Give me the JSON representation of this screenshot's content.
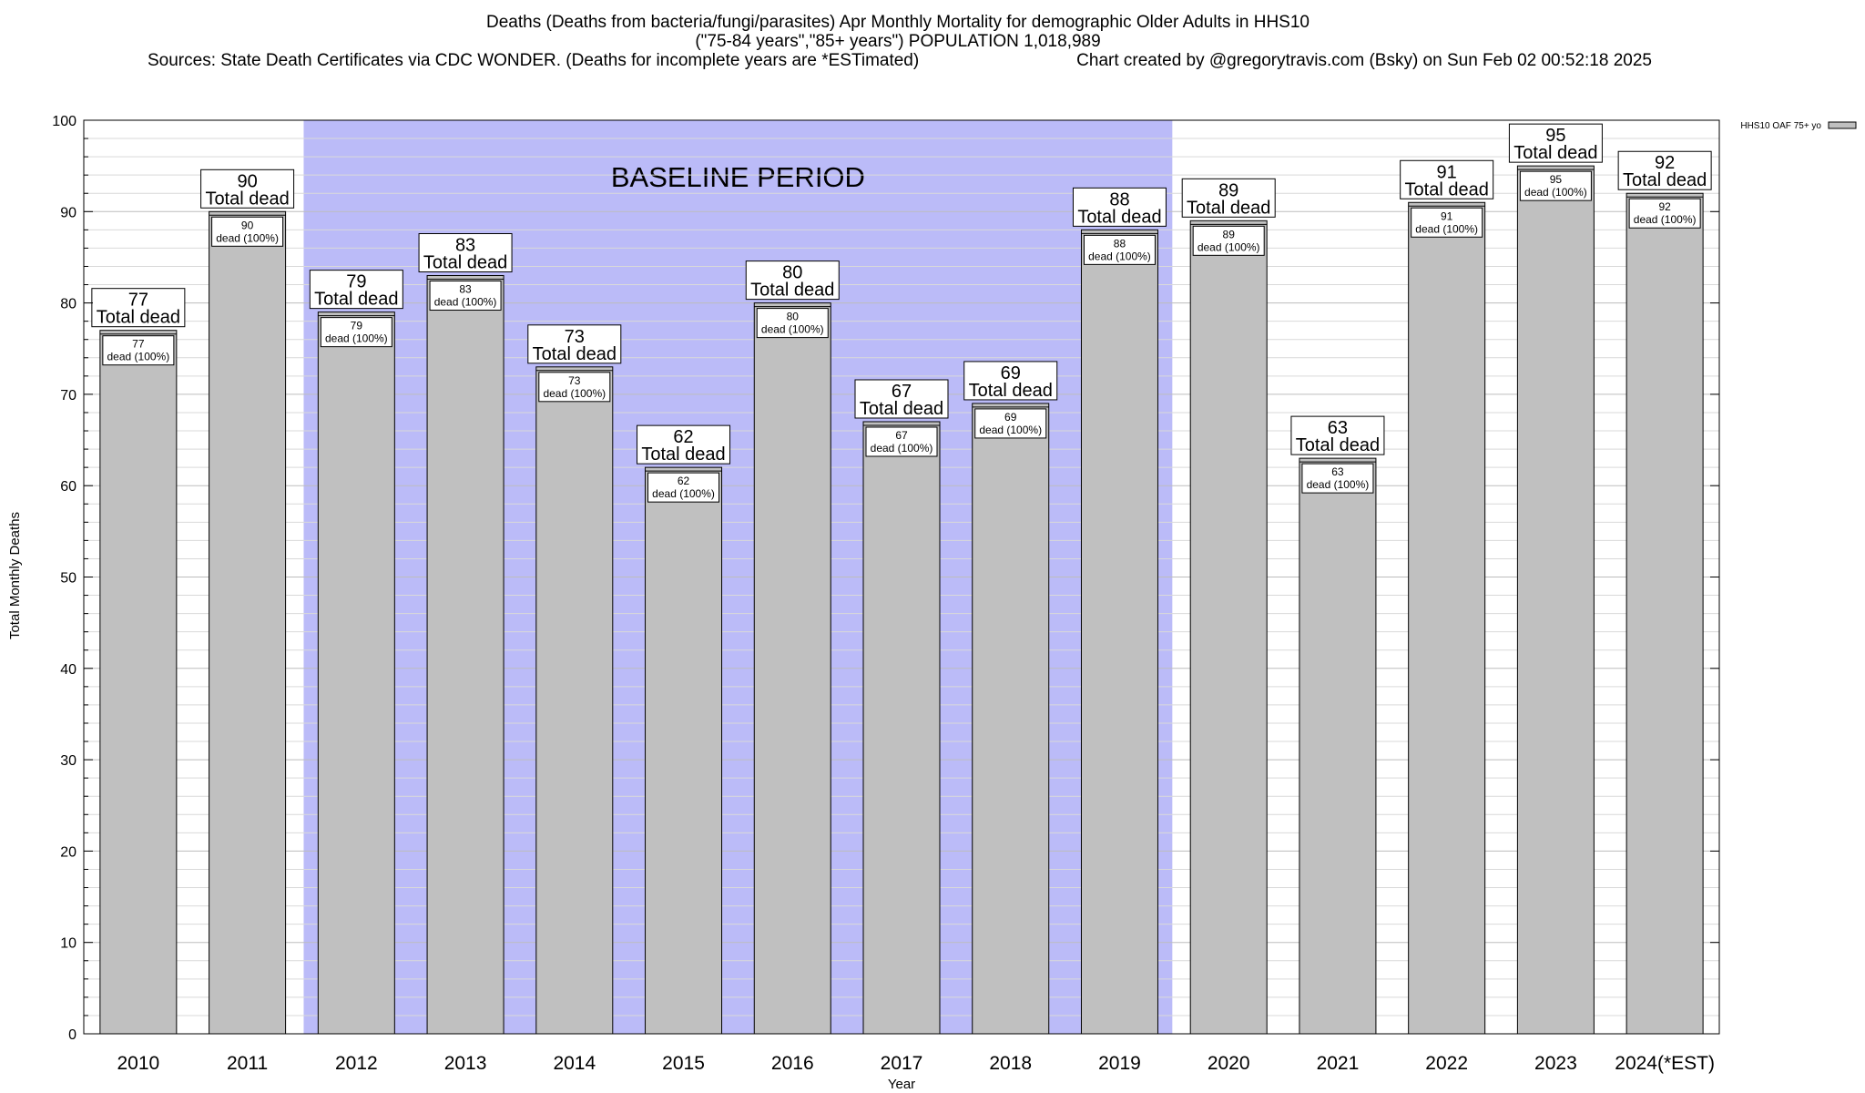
{
  "chart_data": {
    "type": "bar",
    "title_lines": [
      "Deaths (Deaths from bacteria/fungi/parasites) Apr Monthly Mortality for demographic Older Adults in HHS10",
      "(\"75-84 years\",\"85+ years\") POPULATION 1,018,989"
    ],
    "source_line": "Sources: State Death Certificates via CDC WONDER. (Deaths for incomplete years are *ESTimated)",
    "credit_line": "Chart created by @gregorytravis.com (Bsky) on Sun Feb 02 00:52:18 2025",
    "xlabel": "Year",
    "ylabel": "Total Monthly Deaths",
    "ylim": [
      0,
      100
    ],
    "yticks": [
      0,
      10,
      20,
      30,
      40,
      50,
      60,
      70,
      80,
      90,
      100
    ],
    "grid": "horizontal",
    "categories": [
      "2010",
      "2011",
      "2012",
      "2013",
      "2014",
      "2015",
      "2016",
      "2017",
      "2018",
      "2019",
      "2020",
      "2021",
      "2022",
      "2023",
      "2024(*EST)"
    ],
    "series": [
      {
        "name": "HHS10 OAF 75+ yo",
        "values": [
          77,
          90,
          79,
          83,
          73,
          62,
          80,
          67,
          69,
          88,
          89,
          63,
          91,
          95,
          92
        ],
        "color": "#c0c0c0"
      }
    ],
    "label_total": "Total dead",
    "inner_labels": [
      "dead (100%)"
    ],
    "baseline_period": {
      "label": "BASELINE PERIOD",
      "start": "2012",
      "end": "2019",
      "color": "#bbbbf8"
    },
    "legend": {
      "placement": "top-right"
    }
  }
}
